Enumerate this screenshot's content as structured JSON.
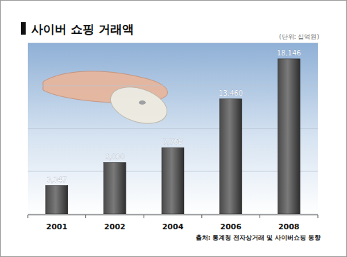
{
  "chart_data": {
    "type": "bar",
    "title": "사이버 쇼핑 거래액",
    "subtitle": "(단위: 십억원)",
    "annotations": [
      "출처: 통계청 전자상거래 및 사이버쇼핑 동향"
    ],
    "categories": [
      "2001",
      "2002",
      "2004",
      "2006",
      "2008"
    ],
    "values": [
      3347,
      6030,
      7768,
      13460,
      18146
    ],
    "value_labels": [
      "3,347",
      "6,030",
      "7,768",
      "13,460",
      "18,146"
    ],
    "data_labels": true,
    "color": "#4a4a4a",
    "ylim": [
      0,
      20000
    ],
    "yticks": [
      0,
      5000,
      10000,
      15000,
      20000
    ],
    "grid": true,
    "tick_labels": "x"
  }
}
